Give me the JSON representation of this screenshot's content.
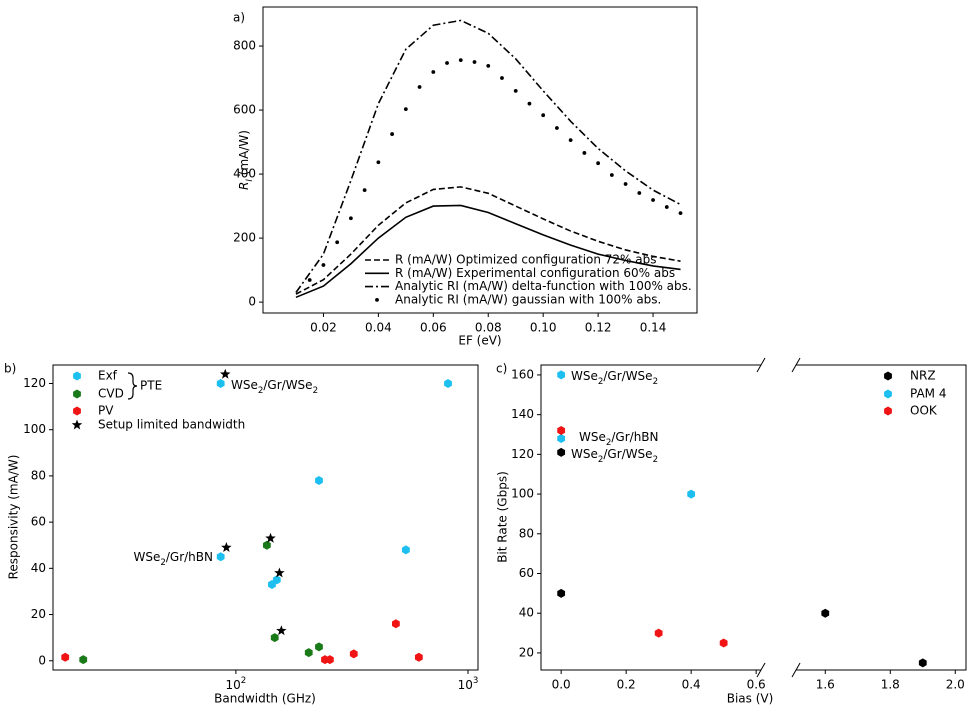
{
  "chart_data": [
    {
      "type": "line",
      "panel": "a)",
      "xlabel": "EF (eV)",
      "ylabel": [
        "R",
        "I",
        " (mA/W)"
      ],
      "xlim": [
        -0.002,
        0.156
      ],
      "ylim": [
        -34,
        922
      ],
      "xticks": [
        0.02,
        0.04,
        0.06,
        0.08,
        {
          "value": 0.1,
          "label": "0.10"
        },
        0.12,
        0.14
      ],
      "yticks": [
        0,
        200,
        400,
        600,
        800
      ],
      "legend": "lower right",
      "series": [
        {
          "name": "R (mA/W) Optimized configuration 72% abs",
          "color": "#000000",
          "linestyle": "dashed",
          "x": [
            0.01,
            0.02,
            0.03,
            0.04,
            0.05,
            0.06,
            0.07,
            0.08,
            0.09,
            0.1,
            0.11,
            0.12,
            0.13,
            0.14,
            0.15
          ],
          "values": [
            25,
            70,
            150,
            240,
            310,
            352,
            360,
            340,
            300,
            260,
            222,
            190,
            163,
            143,
            128
          ]
        },
        {
          "name": "R (mA/W) Experimental configuration 60% abs",
          "color": "#000000",
          "linestyle": "solid",
          "x": [
            0.01,
            0.02,
            0.03,
            0.04,
            0.05,
            0.06,
            0.07,
            0.08,
            0.09,
            0.1,
            0.11,
            0.12,
            0.13,
            0.14,
            0.15
          ],
          "values": [
            15,
            50,
            120,
            200,
            265,
            300,
            302,
            280,
            245,
            210,
            178,
            150,
            130,
            113,
            102
          ]
        },
        {
          "name": "Analytic RI (mA/W) delta-function with 100% abs.",
          "color": "#000000",
          "linestyle": "dashdot",
          "x": [
            0.01,
            0.02,
            0.03,
            0.04,
            0.05,
            0.06,
            0.07,
            0.08,
            0.09,
            0.1,
            0.11,
            0.12,
            0.13,
            0.14,
            0.15
          ],
          "values": [
            30,
            150,
            380,
            620,
            790,
            865,
            880,
            840,
            760,
            660,
            565,
            480,
            410,
            350,
            305
          ]
        },
        {
          "name": "Analytic RI (mA/W) gaussian with 100% abs.",
          "color": "#000000",
          "linestyle": "dotted",
          "x": [
            0.015,
            0.02,
            0.025,
            0.03,
            0.035,
            0.04,
            0.045,
            0.05,
            0.055,
            0.06,
            0.065,
            0.07,
            0.075,
            0.08,
            0.085,
            0.09,
            0.095,
            0.1,
            0.105,
            0.11,
            0.115,
            0.12,
            0.125,
            0.13,
            0.135,
            0.14,
            0.145,
            0.15
          ],
          "values": [
            69,
            116,
            187,
            262,
            350,
            437,
            525,
            603,
            672,
            719,
            747,
            756,
            750,
            738,
            700,
            660,
            620,
            584,
            544,
            506,
            466,
            434,
            397,
            369,
            341,
            319,
            297,
            278
          ]
        }
      ]
    },
    {
      "type": "scatter",
      "panel": "b)",
      "xlabel": "Bandwidth (GHz)",
      "ylabel": "Responsivity (mA/W)",
      "xscale": "log",
      "xlim": [
        16.3,
        1104
      ],
      "ylim": [
        -4,
        128
      ],
      "xticks": [
        {
          "value": 100,
          "label": "10^2"
        },
        {
          "value": 1000,
          "label": "10^3"
        }
      ],
      "yticks": [
        0,
        20,
        40,
        60,
        80,
        100,
        120
      ],
      "legend": "upper left",
      "bracket_label": "PTE",
      "series": [
        {
          "name": "Exf",
          "color": "#1cbff0",
          "marker": "hexagon",
          "x": [
            86,
            820,
            228,
            540,
            86,
            143,
            150
          ],
          "values": [
            120,
            120,
            78,
            48,
            45,
            33,
            35
          ]
        },
        {
          "name": "CVD",
          "color": "#1a7a1a",
          "marker": "hexagon",
          "x": [
            136,
            147,
            206,
            228,
            22
          ],
          "values": [
            50,
            10,
            3.5,
            6,
            0.5
          ]
        },
        {
          "name": "PV",
          "color": "#f01414",
          "marker": "hexagon",
          "x": [
            18.4,
            242,
            254,
            322,
            489,
            614
          ],
          "values": [
            1.5,
            0.5,
            0.5,
            3,
            16,
            1.5
          ]
        },
        {
          "name": "Setup limited bandwidth",
          "color": "#000000",
          "marker": "star",
          "x": [
            90,
            91,
            141,
            154,
            157
          ],
          "values": [
            124,
            49,
            53,
            38,
            13
          ]
        }
      ],
      "annotations": [
        {
          "text": [
            "WSe",
            "2",
            "/Gr/WSe",
            "2"
          ],
          "color": "#000000"
        },
        {
          "text": [
            "WSe",
            "2",
            "/Gr/hBN"
          ],
          "color": "#2020e0"
        }
      ]
    },
    {
      "type": "scatter",
      "panel": "c)",
      "xlabel": "Bias (V)",
      "ylabel": "Bit Rate (Gbps)",
      "xlim": [
        -0.062,
        2.033
      ],
      "xbreak": [
        0.615,
        1.51
      ],
      "ylim": [
        11.4,
        165
      ],
      "xticks": [
        {
          "value": 0,
          "label": "0.0"
        },
        0.2,
        0.4,
        0.6,
        1.6,
        1.8,
        {
          "value": 2,
          "label": "2.0"
        }
      ],
      "yticks": [
        20,
        40,
        60,
        80,
        100,
        120,
        140,
        160
      ],
      "legend": "upper right",
      "series": [
        {
          "name": "NRZ",
          "color": "#000000",
          "marker": "hexagon",
          "x": [
            0,
            0,
            1.6,
            1.9
          ],
          "values": [
            121,
            50,
            40,
            15
          ]
        },
        {
          "name": "PAM 4",
          "color": "#1cbff0",
          "marker": "hexagon",
          "x": [
            0,
            0,
            0.4
          ],
          "values": [
            160,
            128,
            100
          ]
        },
        {
          "name": "OOK",
          "color": "#f01414",
          "marker": "hexagon",
          "x": [
            0,
            0.3,
            0.5
          ],
          "values": [
            132,
            30,
            25
          ]
        }
      ],
      "annotations": [
        {
          "text": [
            "WSe",
            "2",
            "/Gr/WSe",
            "2"
          ],
          "color": "#000000"
        },
        {
          "text": [
            "WSe",
            "2",
            "/Gr/hBN"
          ],
          "color": "#2020e0"
        },
        {
          "text": [
            "WSe",
            "2",
            "/Gr/WSe",
            "2"
          ],
          "color": "#000000"
        }
      ]
    }
  ]
}
